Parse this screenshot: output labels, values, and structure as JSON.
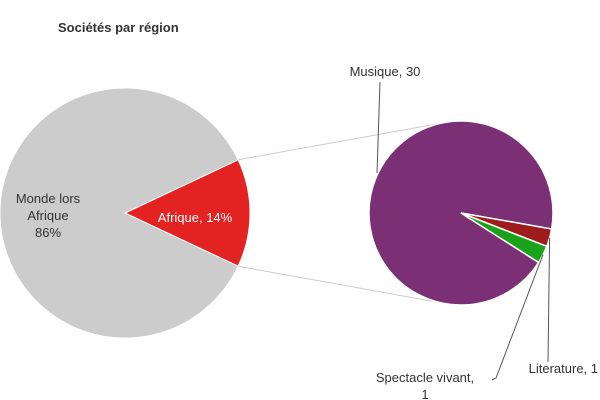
{
  "chart_data": {
    "type": "pie",
    "title": "Sociétés par région",
    "primary": {
      "slices": [
        {
          "key": "monde",
          "label_lines": [
            "Monde lors",
            "Afrique",
            "86%"
          ],
          "value": 86,
          "color": "#cccccc"
        },
        {
          "key": "afrique",
          "label_lines": [
            "Afrique, 14%"
          ],
          "value": 14,
          "color": "#e32222"
        }
      ]
    },
    "secondary": {
      "breakdown_of": "afrique",
      "slices": [
        {
          "key": "musique",
          "label_lines": [
            "Musique, 30"
          ],
          "value": 30,
          "color": "#7b2f74"
        },
        {
          "key": "spectacle",
          "label_lines": [
            "Spectacle vivant,",
            "1"
          ],
          "value": 1,
          "color": "#1aa31a"
        },
        {
          "key": "literature",
          "label_lines": [
            "Literature, 1"
          ],
          "value": 1,
          "color": "#9e1c1c"
        }
      ]
    }
  }
}
